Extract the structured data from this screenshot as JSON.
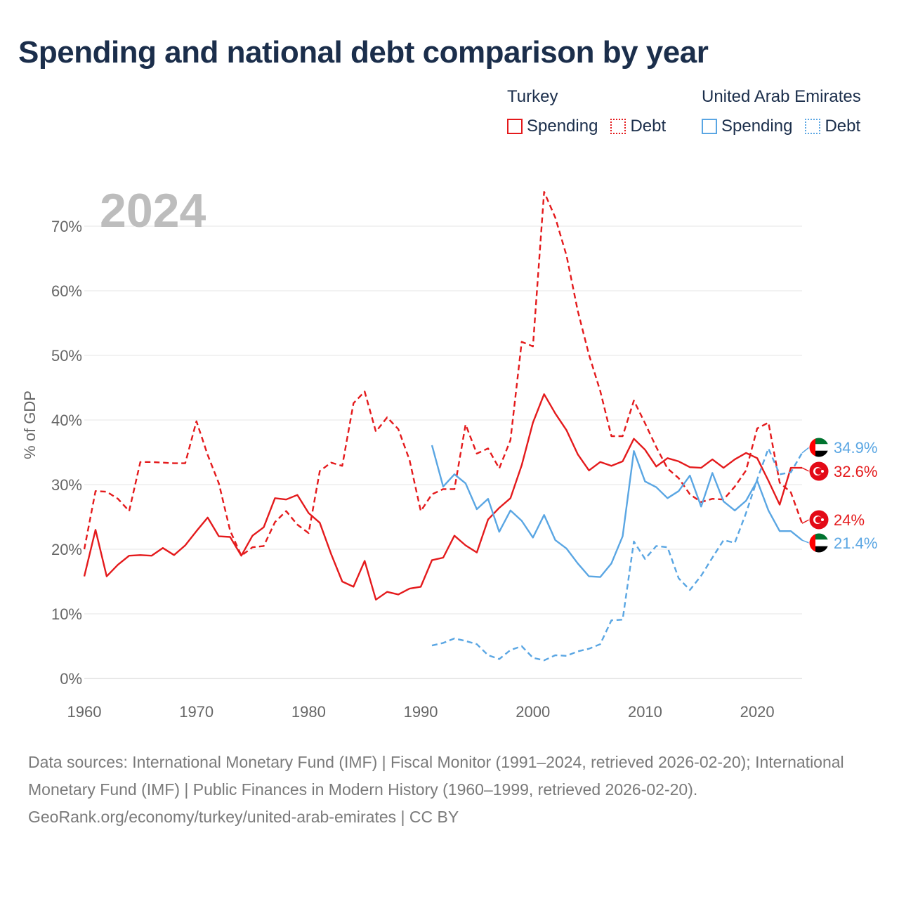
{
  "title": "Spending and national debt comparison by year",
  "legend": {
    "groups": [
      {
        "name": "Turkey",
        "color": "#e41a1c",
        "spending_label": "Spending",
        "debt_label": "Debt"
      },
      {
        "name": "United Arab Emirates",
        "color": "#5aa6e3",
        "spending_label": "Spending",
        "debt_label": "Debt"
      }
    ]
  },
  "footer": {
    "sources": "Data sources: International Monetary Fund (IMF) | Fiscal Monitor (1991–2024, retrieved 2026-02-20); International Monetary Fund (IMF) | Public Finances in Modern History (1960–1999, retrieved 2026-02-20).",
    "credit": "GeoRank.org/economy/turkey/united-arab-emirates | CC BY"
  },
  "chart_data": {
    "type": "line",
    "title": "Spending and national debt comparison by year",
    "year_label": "2024",
    "xlabel": "",
    "ylabel": "% of GDP",
    "xlim": [
      1960,
      2024
    ],
    "ylim": [
      0,
      75
    ],
    "x_ticks": [
      1960,
      1970,
      1980,
      1990,
      2000,
      2010,
      2020
    ],
    "y_ticks": [
      0,
      10,
      20,
      30,
      40,
      50,
      60,
      70
    ],
    "y_tick_labels": [
      "0%",
      "10%",
      "20%",
      "30%",
      "40%",
      "50%",
      "60%",
      "70%"
    ],
    "grid": true,
    "series": [
      {
        "name": "Turkey Spending",
        "country": "Turkey",
        "measure": "Spending",
        "color": "#e41a1c",
        "dash": "solid",
        "start_year": 1960,
        "values": [
          15.8,
          23.0,
          15.8,
          17.6,
          19.0,
          19.1,
          19.0,
          20.2,
          19.1,
          20.6,
          22.8,
          24.9,
          22.0,
          21.9,
          19.0,
          22.1,
          23.4,
          27.9,
          27.7,
          28.4,
          25.6,
          24.1,
          19.3,
          15.0,
          14.2,
          18.2,
          12.2,
          13.4,
          13.0,
          13.9,
          14.2,
          18.3,
          18.7,
          22.1,
          20.6,
          19.5,
          24.6,
          26.4,
          27.9,
          33.0,
          39.6,
          44.0,
          41.0,
          38.4,
          34.7,
          32.2,
          33.5,
          32.9,
          33.6,
          37.1,
          35.4,
          32.8,
          34.1,
          33.6,
          32.7,
          32.6,
          33.9,
          32.6,
          33.9,
          34.9,
          34.1,
          30.6,
          26.9,
          32.6,
          32.6
        ]
      },
      {
        "name": "Turkey Debt",
        "country": "Turkey",
        "measure": "Debt",
        "color": "#e41a1c",
        "dash": "dashed",
        "start_year": 1960,
        "values": [
          20.0,
          29.0,
          28.9,
          27.8,
          25.9,
          33.5,
          33.5,
          33.4,
          33.3,
          33.3,
          39.8,
          34.6,
          30.2,
          22.9,
          19.0,
          20.3,
          20.5,
          24.2,
          25.9,
          23.8,
          22.5,
          32.1,
          33.4,
          32.9,
          42.6,
          44.4,
          38.2,
          40.4,
          38.6,
          33.8,
          25.9,
          28.5,
          29.3,
          29.3,
          39.3,
          34.8,
          35.6,
          32.5,
          36.9,
          52.1,
          51.4,
          75.3,
          71.3,
          65.4,
          56.9,
          50.1,
          44.5,
          37.5,
          37.5,
          43.0,
          39.5,
          35.8,
          32.5,
          31.0,
          28.5,
          27.3,
          27.8,
          27.7,
          29.7,
          32.2,
          38.7,
          39.6,
          30.3,
          28.8,
          24.0
        ]
      },
      {
        "name": "United Arab Emirates Spending",
        "country": "United Arab Emirates",
        "measure": "Spending",
        "color": "#5aa6e3",
        "dash": "solid",
        "start_year": 1991,
        "values": [
          36.1,
          29.7,
          31.6,
          30.2,
          26.2,
          27.8,
          22.7,
          26.0,
          24.4,
          21.8,
          25.3,
          21.4,
          20.1,
          17.8,
          15.8,
          15.7,
          17.8,
          22.0,
          35.2,
          30.5,
          29.6,
          27.9,
          29.0,
          31.4,
          26.6,
          31.8,
          27.4,
          26.0,
          27.5,
          30.6,
          26.0,
          22.8,
          22.8,
          21.4
        ]
      },
      {
        "name": "United Arab Emirates Debt",
        "country": "United Arab Emirates",
        "measure": "Debt",
        "color": "#5aa6e3",
        "dash": "dashed",
        "start_year": 1991,
        "values": [
          5.1,
          5.5,
          6.2,
          5.8,
          5.3,
          3.6,
          3.0,
          4.4,
          5.0,
          3.2,
          2.8,
          3.6,
          3.5,
          4.2,
          4.6,
          5.3,
          9.0,
          9.1,
          21.2,
          18.5,
          20.5,
          20.3,
          15.5,
          13.7,
          15.9,
          18.7,
          21.4,
          21.0,
          25.6,
          30.8,
          35.6,
          31.6,
          31.9,
          34.9
        ]
      }
    ],
    "end_labels": [
      {
        "series": "United Arab Emirates Debt",
        "text": "34.9%",
        "value": 34.9,
        "color": "#5aa6e3",
        "flag": "uae"
      },
      {
        "series": "Turkey Spending",
        "text": "32.6%",
        "value": 32.6,
        "color": "#e41a1c",
        "flag": "turkey"
      },
      {
        "series": "Turkey Debt",
        "text": "24%",
        "value": 24.0,
        "color": "#e41a1c",
        "flag": "turkey"
      },
      {
        "series": "United Arab Emirates Spending",
        "text": "21.4%",
        "value": 21.4,
        "color": "#5aa6e3",
        "flag": "uae"
      }
    ]
  }
}
